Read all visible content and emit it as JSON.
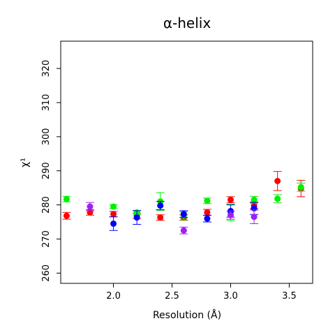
{
  "chart_data": {
    "type": "scatter",
    "title": "α-helix",
    "xlabel": "Resolution (Å)",
    "ylabel": "χ¹",
    "xlim": [
      1.55,
      3.7
    ],
    "ylim": [
      257,
      328
    ],
    "xticks": [
      2.0,
      2.5,
      3.0,
      3.5
    ],
    "xtick_labels": [
      "2.0",
      "2.5",
      "3.0",
      "3.5"
    ],
    "yticks": [
      260,
      270,
      280,
      290,
      300,
      310,
      320
    ],
    "ytick_labels": [
      "260",
      "270",
      "280",
      "290",
      "300",
      "310",
      "320"
    ],
    "grid": false,
    "legend": null,
    "series": [
      {
        "color": "#ff0000",
        "points": [
          {
            "x": 1.6,
            "y": 276.8,
            "err": 1.0
          },
          {
            "x": 1.8,
            "y": 277.8,
            "err": 0.8
          },
          {
            "x": 2.0,
            "y": 277.3,
            "err": 0.8
          },
          {
            "x": 2.2,
            "y": 276.8,
            "err": 0.8
          },
          {
            "x": 2.4,
            "y": 276.3,
            "err": 0.8
          },
          {
            "x": 2.6,
            "y": 276.3,
            "err": 0.8
          },
          {
            "x": 2.8,
            "y": 277.8,
            "err": 0.9
          },
          {
            "x": 3.0,
            "y": 281.5,
            "err": 0.9
          },
          {
            "x": 3.2,
            "y": 279.8,
            "err": 0.9
          },
          {
            "x": 3.4,
            "y": 287.0,
            "err": 2.8
          },
          {
            "x": 3.6,
            "y": 284.8,
            "err": 2.4
          }
        ]
      },
      {
        "color": "#00ee00",
        "points": [
          {
            "x": 1.6,
            "y": 281.7,
            "err": 0.8
          },
          {
            "x": 2.0,
            "y": 279.5,
            "err": 0.6
          },
          {
            "x": 2.2,
            "y": 277.8,
            "err": 0.6
          },
          {
            "x": 2.4,
            "y": 281.0,
            "err": 2.6
          },
          {
            "x": 2.6,
            "y": 276.8,
            "err": 1.2
          },
          {
            "x": 2.8,
            "y": 281.2,
            "err": 0.8
          },
          {
            "x": 3.0,
            "y": 277.8,
            "err": 2.4
          },
          {
            "x": 3.2,
            "y": 281.5,
            "err": 1.0
          },
          {
            "x": 3.4,
            "y": 281.8,
            "err": 1.2
          },
          {
            "x": 3.6,
            "y": 285.2,
            "err": 1.2
          }
        ]
      },
      {
        "color": "#0000ff",
        "points": [
          {
            "x": 2.0,
            "y": 274.5,
            "err": 2.0
          },
          {
            "x": 2.2,
            "y": 276.3,
            "err": 2.0
          },
          {
            "x": 2.4,
            "y": 279.8,
            "err": 1.2
          },
          {
            "x": 2.6,
            "y": 277.3,
            "err": 1.0
          },
          {
            "x": 2.8,
            "y": 276.0,
            "err": 1.0
          },
          {
            "x": 3.0,
            "y": 278.2,
            "err": 1.8
          },
          {
            "x": 3.2,
            "y": 279.0,
            "err": 1.8
          }
        ]
      },
      {
        "color": "#a020f0",
        "points": [
          {
            "x": 1.8,
            "y": 279.5,
            "err": 1.2
          },
          {
            "x": 2.6,
            "y": 272.5,
            "err": 1.0
          },
          {
            "x": 3.0,
            "y": 277.0,
            "err": 1.2
          },
          {
            "x": 3.2,
            "y": 276.5,
            "err": 2.0
          }
        ]
      }
    ]
  }
}
